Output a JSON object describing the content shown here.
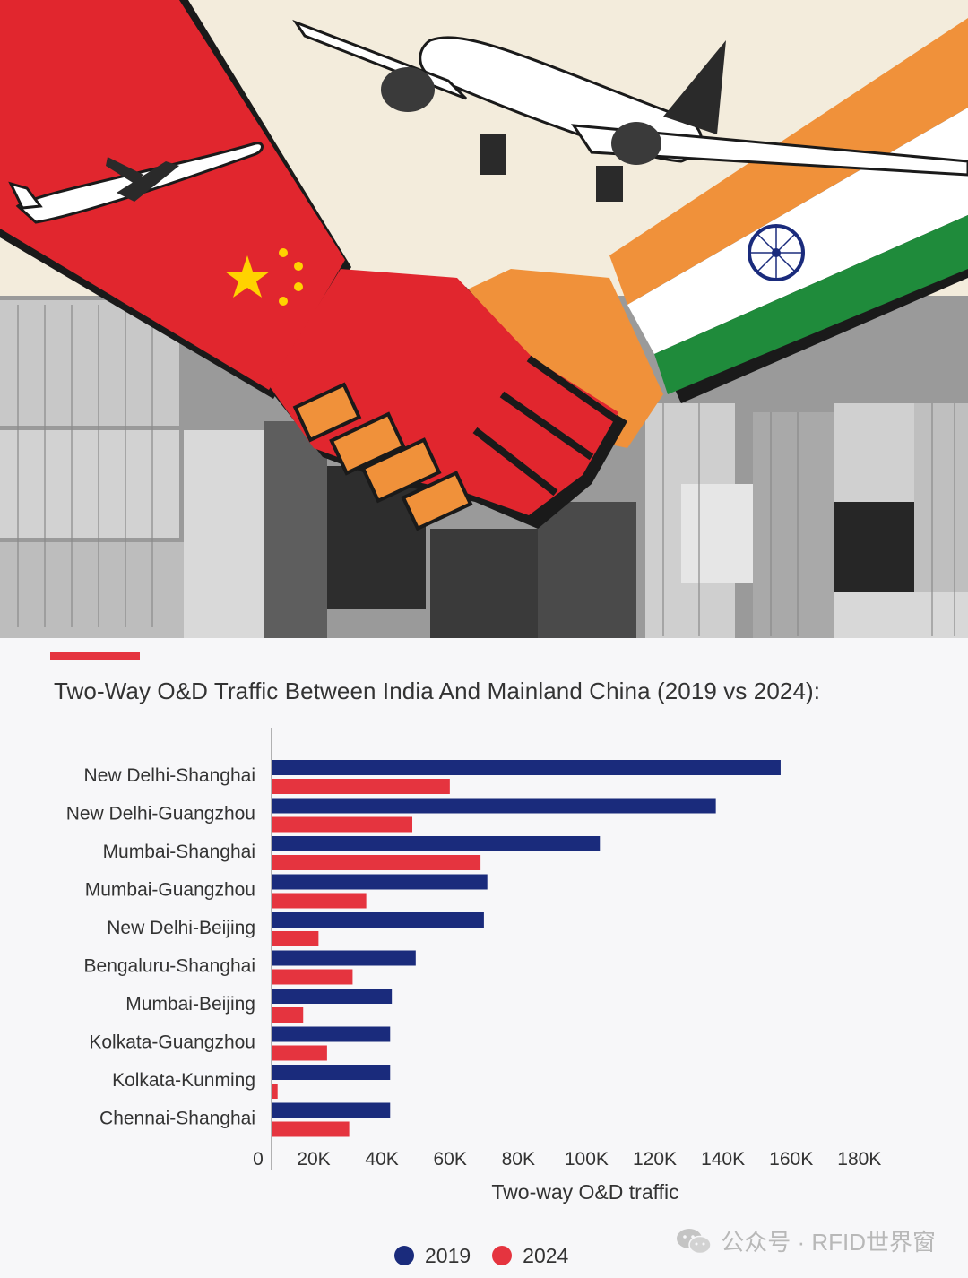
{
  "header": {
    "title": "Two-Way O&D Traffic Between India And Mainland China (2019 vs 2024):"
  },
  "legend": [
    {
      "label": "2019",
      "color": "#1a2b7c"
    },
    {
      "label": "2024",
      "color": "#e5343f"
    }
  ],
  "watermark": {
    "text": "公众号 · RFID世界窗",
    "icon": "wechat-icon"
  },
  "hero": {
    "description_icons": [
      "china-flag-icon",
      "india-flag-icon",
      "handshake-icon",
      "airplane-icon",
      "shipping-container-icon"
    ],
    "colors": {
      "china_red": "#e1262e",
      "india_saffron": "#f0913a",
      "india_green": "#1f8b3b",
      "cream": "#f3ecdc"
    }
  },
  "chart_data": {
    "type": "bar",
    "orientation": "horizontal",
    "title": "Two-Way O&D Traffic Between India And Mainland China (2019 vs 2024):",
    "xlabel": "Two-way O&D traffic",
    "ylabel": "",
    "xlim": [
      0,
      180000
    ],
    "x_ticks": [
      "0",
      "20K",
      "40K",
      "60K",
      "80K",
      "100K",
      "120K",
      "140K",
      "160K",
      "180K"
    ],
    "categories": [
      "New Delhi-Shanghai",
      "New Delhi-Guangzhou",
      "Mumbai-Shanghai",
      "Mumbai-Guangzhou",
      "New Delhi-Beijing",
      "Bengaluru-Shanghai",
      "Mumbai-Beijing",
      "Kolkata-Guangzhou",
      "Kolkata-Kunming",
      "Chennai-Shanghai"
    ],
    "series": [
      {
        "name": "2019",
        "color": "#1a2b7c",
        "values": [
          149000,
          130000,
          96000,
          63000,
          62000,
          42000,
          35000,
          34500,
          34500,
          34500
        ]
      },
      {
        "name": "2024",
        "color": "#e5343f",
        "values": [
          52000,
          41000,
          61000,
          27500,
          13500,
          23500,
          9000,
          16000,
          1500,
          22500
        ]
      }
    ],
    "grid": false,
    "legend_position": "bottom"
  }
}
